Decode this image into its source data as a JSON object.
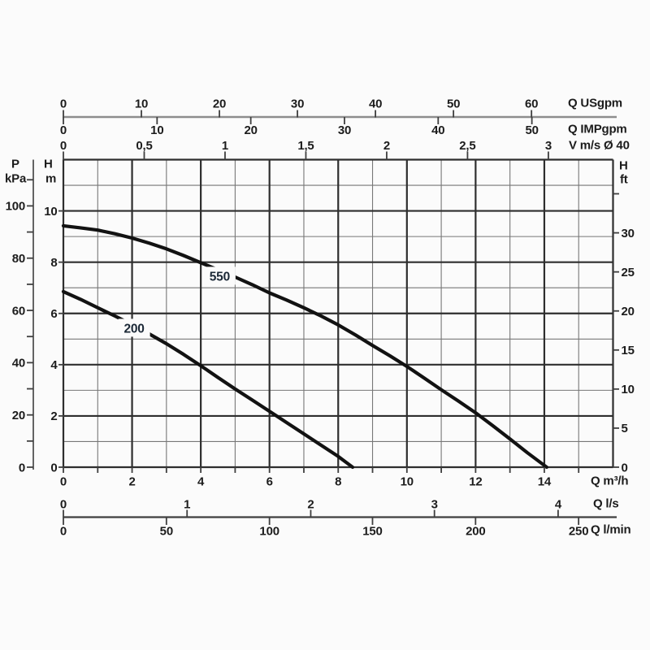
{
  "page": {
    "background": "#fbfbfb"
  },
  "header_labels": {
    "p": "P",
    "kpa": "kPa",
    "h_left": "H",
    "m": "m",
    "h_right": "H",
    "ft": "ft"
  },
  "units": {
    "usgpm": "Q USgpm",
    "impgpm": "Q IMPgpm",
    "vms": "V m/s Ø 40",
    "m3h": "Q m³/h",
    "ls": "Q l/s",
    "lmin": "Q l/min"
  },
  "colors": {
    "background": "#fbfbfb",
    "grid_major": "#2e2e2e",
    "grid_minor": "#777777",
    "axis_gray": "#8d8d8d",
    "axis_dark": "#3f3f3f",
    "text": "#1c1c1c",
    "curve": "#121212",
    "curve_label": "#1b2836"
  },
  "chart_data": {
    "type": "line",
    "x_axis_main": {
      "unit": "Q m³/h",
      "range": [
        0,
        16
      ],
      "gridline_step": 1,
      "major_every": 2
    },
    "y_axis_main": {
      "unit": "H m",
      "range": [
        0,
        12
      ],
      "gridline_step": 1,
      "major_every": 2
    },
    "grid": true,
    "legend": "inline-curve-labels",
    "x_axes": [
      {
        "id": "usgpm",
        "unit": "Q USgpm",
        "side": "top",
        "max_at_right_edge": 70.45,
        "ticks": [
          {
            "v": 0,
            "t": "0"
          },
          {
            "v": 10,
            "t": "10"
          },
          {
            "v": 20,
            "t": "20"
          },
          {
            "v": 30,
            "t": "30"
          },
          {
            "v": 40,
            "t": "40"
          },
          {
            "v": 50,
            "t": "50"
          },
          {
            "v": 60,
            "t": "60"
          }
        ]
      },
      {
        "id": "impgpm",
        "unit": "Q IMPgpm",
        "side": "top",
        "max_at_right_edge": 58.66,
        "ticks": [
          {
            "v": 0,
            "t": "0"
          },
          {
            "v": 10,
            "t": "10"
          },
          {
            "v": 20,
            "t": "20"
          },
          {
            "v": 30,
            "t": "30"
          },
          {
            "v": 40,
            "t": "40"
          },
          {
            "v": 50,
            "t": "50"
          }
        ]
      },
      {
        "id": "vms",
        "unit": "V m/s Ø 40",
        "side": "top",
        "max_at_right_edge": 3.4,
        "ticks": [
          {
            "v": 0,
            "t": "0"
          },
          {
            "v": 0.5,
            "t": "0,5"
          },
          {
            "v": 1,
            "t": "1"
          },
          {
            "v": 1.5,
            "t": "1,5"
          },
          {
            "v": 2,
            "t": "2"
          },
          {
            "v": 2.5,
            "t": "2,5"
          },
          {
            "v": 3,
            "t": "3"
          }
        ]
      },
      {
        "id": "m3h",
        "unit": "Q m³/h",
        "side": "bottom",
        "max_at_right_edge": 16,
        "ticks": [
          {
            "v": 0,
            "t": "0"
          },
          {
            "v": 1,
            "t": ""
          },
          {
            "v": 2,
            "t": "2"
          },
          {
            "v": 3,
            "t": ""
          },
          {
            "v": 4,
            "t": "4"
          },
          {
            "v": 5,
            "t": ""
          },
          {
            "v": 6,
            "t": "6"
          },
          {
            "v": 7,
            "t": ""
          },
          {
            "v": 8,
            "t": "8"
          },
          {
            "v": 9,
            "t": ""
          },
          {
            "v": 10,
            "t": "10"
          },
          {
            "v": 11,
            "t": ""
          },
          {
            "v": 12,
            "t": "12"
          },
          {
            "v": 13,
            "t": ""
          },
          {
            "v": 14,
            "t": "14"
          },
          {
            "v": 15,
            "t": ""
          }
        ]
      },
      {
        "id": "ls",
        "unit": "Q l/s",
        "side": "bottom",
        "max_at_right_edge": 4.444,
        "ticks": [
          {
            "v": 0,
            "t": "0"
          },
          {
            "v": 1,
            "t": "1"
          },
          {
            "v": 2,
            "t": "2"
          },
          {
            "v": 3,
            "t": "3"
          },
          {
            "v": 4,
            "t": "4"
          }
        ]
      },
      {
        "id": "lmin",
        "unit": "Q l/min",
        "side": "bottom",
        "max_at_right_edge": 266.7,
        "ticks": [
          {
            "v": 0,
            "t": "0"
          },
          {
            "v": 50,
            "t": "50"
          },
          {
            "v": 100,
            "t": "100"
          },
          {
            "v": 150,
            "t": "150"
          },
          {
            "v": 200,
            "t": "200"
          },
          {
            "v": 250,
            "t": "250"
          }
        ]
      }
    ],
    "y_axes": [
      {
        "id": "pkpa",
        "unit": "P kPa",
        "side": "left",
        "max_at_top_edge": 117.7,
        "ticks": [
          {
            "v": 0,
            "t": "0"
          },
          {
            "v": 10,
            "t": ""
          },
          {
            "v": 20,
            "t": "20"
          },
          {
            "v": 30,
            "t": ""
          },
          {
            "v": 40,
            "t": "40"
          },
          {
            "v": 50,
            "t": ""
          },
          {
            "v": 60,
            "t": "60"
          },
          {
            "v": 70,
            "t": ""
          },
          {
            "v": 80,
            "t": "80"
          },
          {
            "v": 90,
            "t": ""
          },
          {
            "v": 100,
            "t": "100"
          },
          {
            "v": 110,
            "t": ""
          }
        ]
      },
      {
        "id": "hm",
        "unit": "H m",
        "side": "left",
        "max_at_top_edge": 12,
        "ticks": [
          {
            "v": 0,
            "t": "0"
          },
          {
            "v": 2,
            "t": "2"
          },
          {
            "v": 4,
            "t": "4"
          },
          {
            "v": 6,
            "t": "6"
          },
          {
            "v": 8,
            "t": "8"
          },
          {
            "v": 10,
            "t": "10"
          }
        ]
      },
      {
        "id": "hft",
        "unit": "H ft",
        "side": "right",
        "max_at_top_edge": 39.37,
        "ticks": [
          {
            "v": 0,
            "t": "0"
          },
          {
            "v": 5,
            "t": "5"
          },
          {
            "v": 10,
            "t": "10"
          },
          {
            "v": 15,
            "t": "15"
          },
          {
            "v": 20,
            "t": "20"
          },
          {
            "v": 25,
            "t": "25"
          },
          {
            "v": 30,
            "t": "30"
          },
          {
            "v": 35,
            "t": ""
          }
        ]
      }
    ],
    "series": [
      {
        "name": "550",
        "points": [
          [
            0,
            9.42
          ],
          [
            0.5,
            9.34
          ],
          [
            1,
            9.25
          ],
          [
            1.5,
            9.11
          ],
          [
            2,
            8.94
          ],
          [
            2.5,
            8.74
          ],
          [
            3,
            8.52
          ],
          [
            3.5,
            8.26
          ],
          [
            4,
            7.98
          ],
          [
            4.5,
            7.7
          ],
          [
            5,
            7.42
          ],
          [
            5.5,
            7.12
          ],
          [
            6,
            6.8
          ],
          [
            6.5,
            6.52
          ],
          [
            7,
            6.22
          ],
          [
            7.5,
            5.9
          ],
          [
            8,
            5.55
          ],
          [
            8.5,
            5.16
          ],
          [
            9,
            4.75
          ],
          [
            9.5,
            4.35
          ],
          [
            10,
            3.93
          ],
          [
            10.5,
            3.48
          ],
          [
            11,
            3.02
          ],
          [
            11.5,
            2.58
          ],
          [
            12,
            2.12
          ],
          [
            12.5,
            1.62
          ],
          [
            13,
            1.1
          ],
          [
            13.5,
            0.57
          ],
          [
            14.07,
            0
          ]
        ],
        "label_at": {
          "q": 4.55,
          "h": 7.47
        }
      },
      {
        "name": "200",
        "points": [
          [
            0,
            6.85
          ],
          [
            0.5,
            6.55
          ],
          [
            1,
            6.22
          ],
          [
            1.5,
            5.9
          ],
          [
            2,
            5.56
          ],
          [
            2.5,
            5.2
          ],
          [
            3,
            4.82
          ],
          [
            3.5,
            4.4
          ],
          [
            4,
            3.96
          ],
          [
            4.5,
            3.5
          ],
          [
            5,
            3.05
          ],
          [
            5.5,
            2.62
          ],
          [
            6,
            2.18
          ],
          [
            6.5,
            1.74
          ],
          [
            7,
            1.3
          ],
          [
            7.5,
            0.86
          ],
          [
            8,
            0.42
          ],
          [
            8.42,
            0
          ]
        ],
        "label_at": {
          "q": 2.06,
          "h": 5.44
        }
      }
    ]
  }
}
